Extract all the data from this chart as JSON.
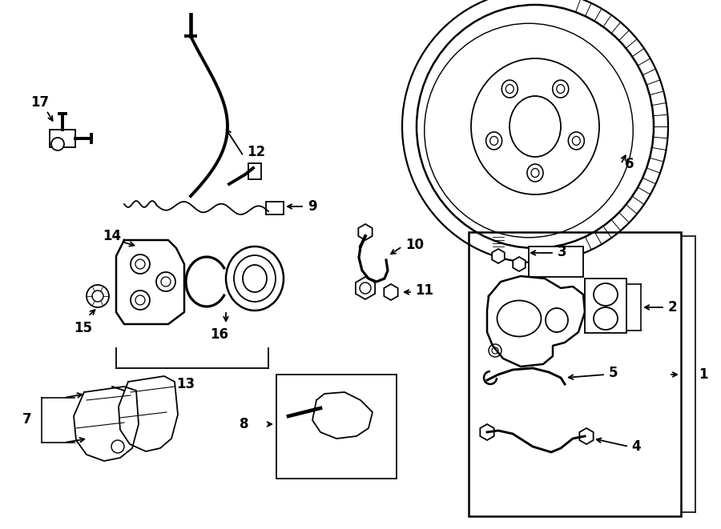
{
  "bg_color": "#ffffff",
  "line_color": "#000000",
  "fig_width": 9.0,
  "fig_height": 6.61,
  "dpi": 100,
  "font_size": 11,
  "lw": 1.3
}
